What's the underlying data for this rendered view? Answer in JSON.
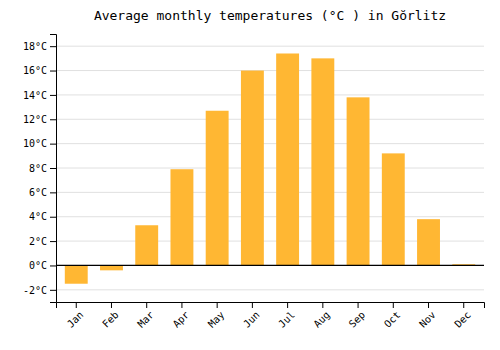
{
  "chart_data": {
    "type": "bar",
    "title": "Average monthly temperatures (°C ) in Gŏrlitz",
    "categories": [
      "Jan",
      "Feb",
      "Mar",
      "Apr",
      "May",
      "Jun",
      "Jul",
      "Aug",
      "Sep",
      "Oct",
      "Nov",
      "Dec"
    ],
    "values": [
      -1.5,
      -0.4,
      3.3,
      7.9,
      12.7,
      16.0,
      17.4,
      17.0,
      13.8,
      9.2,
      3.8,
      0.1
    ],
    "color": "#FFB733",
    "ylim": [
      -3,
      19
    ],
    "yticks": [
      {
        "value": -2,
        "label": "-2°C"
      },
      {
        "value": 0,
        "label": "0°C"
      },
      {
        "value": 2,
        "label": "2°C"
      },
      {
        "value": 4,
        "label": "4°C"
      },
      {
        "value": 6,
        "label": "6°C"
      },
      {
        "value": 8,
        "label": "8°C"
      },
      {
        "value": 10,
        "label": "10°C"
      },
      {
        "value": 12,
        "label": "12°C"
      },
      {
        "value": 14,
        "label": "14°C"
      },
      {
        "value": 16,
        "label": "16°C"
      },
      {
        "value": 18,
        "label": "18°C"
      }
    ],
    "grid": true
  }
}
